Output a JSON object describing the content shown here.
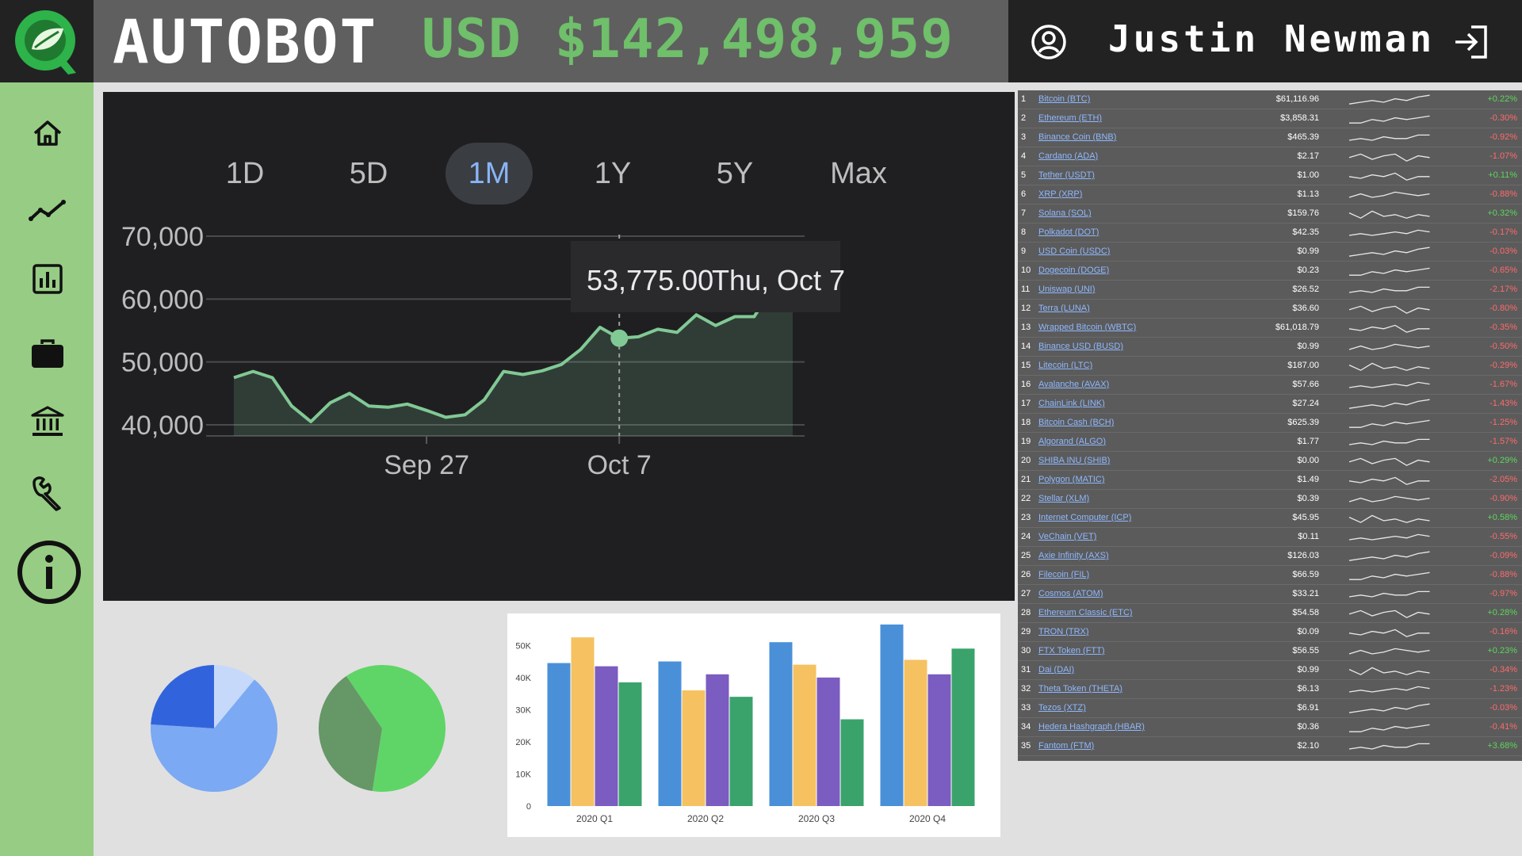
{
  "header": {
    "brand": "AUTOBOT",
    "balance": "USD $142,498,959",
    "user_name": "Justin Newman"
  },
  "sidebar": {
    "items": [
      {
        "name": "home",
        "icon": "home-icon"
      },
      {
        "name": "trends",
        "icon": "line-chart-icon"
      },
      {
        "name": "analytics",
        "icon": "bar-chart-icon"
      },
      {
        "name": "portfolio",
        "icon": "briefcase-icon"
      },
      {
        "name": "bank",
        "icon": "bank-icon"
      },
      {
        "name": "settings",
        "icon": "wrench-icon"
      },
      {
        "name": "info",
        "icon": "info-icon"
      }
    ]
  },
  "range_tabs": [
    "1D",
    "5D",
    "1M",
    "1Y",
    "5Y",
    "Max"
  ],
  "active_range": "1M",
  "tooltip": {
    "value": "53,775.00",
    "date": "Thu, Oct 7"
  },
  "colors": {
    "green": "#6fbf6b",
    "line": "#81c995",
    "accent_blue": "#8ab4f8"
  },
  "crypto": [
    {
      "rank": "1",
      "name": "Bitcoin (BTC)",
      "price": "$61,116.96",
      "change": "+0.22%"
    },
    {
      "rank": "2",
      "name": "Ethereum (ETH)",
      "price": "$3,858.31",
      "change": "-0.30%"
    },
    {
      "rank": "3",
      "name": "Binance Coin (BNB)",
      "price": "$465.39",
      "change": "-0.92%"
    },
    {
      "rank": "4",
      "name": "Cardano (ADA)",
      "price": "$2.17",
      "change": "-1.07%"
    },
    {
      "rank": "5",
      "name": "Tether (USDT)",
      "price": "$1.00",
      "change": "+0.11%"
    },
    {
      "rank": "6",
      "name": "XRP (XRP)",
      "price": "$1.13",
      "change": "-0.88%"
    },
    {
      "rank": "7",
      "name": "Solana (SOL)",
      "price": "$159.76",
      "change": "+0.32%"
    },
    {
      "rank": "8",
      "name": "Polkadot (DOT)",
      "price": "$42.35",
      "change": "-0.17%"
    },
    {
      "rank": "9",
      "name": "USD Coin (USDC)",
      "price": "$0.99",
      "change": "-0.03%"
    },
    {
      "rank": "10",
      "name": "Dogecoin (DOGE)",
      "price": "$0.23",
      "change": "-0.65%"
    },
    {
      "rank": "11",
      "name": "Uniswap (UNI)",
      "price": "$26.52",
      "change": "-2.17%"
    },
    {
      "rank": "12",
      "name": "Terra (LUNA)",
      "price": "$36.60",
      "change": "-0.80%"
    },
    {
      "rank": "13",
      "name": "Wrapped Bitcoin (WBTC)",
      "price": "$61,018.79",
      "change": "-0.35%"
    },
    {
      "rank": "14",
      "name": "Binance USD (BUSD)",
      "price": "$0.99",
      "change": "-0.50%"
    },
    {
      "rank": "15",
      "name": "Litecoin (LTC)",
      "price": "$187.00",
      "change": "-0.29%"
    },
    {
      "rank": "16",
      "name": "Avalanche (AVAX)",
      "price": "$57.66",
      "change": "-1.67%"
    },
    {
      "rank": "17",
      "name": "ChainLink (LINK)",
      "price": "$27.24",
      "change": "-1.43%"
    },
    {
      "rank": "18",
      "name": "Bitcoin Cash (BCH)",
      "price": "$625.39",
      "change": "-1.25%"
    },
    {
      "rank": "19",
      "name": "Algorand (ALGO)",
      "price": "$1.77",
      "change": "-1.57%"
    },
    {
      "rank": "20",
      "name": "SHIBA INU (SHIB)",
      "price": "$0.00",
      "change": "+0.29%"
    },
    {
      "rank": "21",
      "name": "Polygon (MATIC)",
      "price": "$1.49",
      "change": "-2.05%"
    },
    {
      "rank": "22",
      "name": "Stellar (XLM)",
      "price": "$0.39",
      "change": "-0.90%"
    },
    {
      "rank": "23",
      "name": "Internet Computer (ICP)",
      "price": "$45.95",
      "change": "+0.58%"
    },
    {
      "rank": "24",
      "name": "VeChain (VET)",
      "price": "$0.11",
      "change": "-0.55%"
    },
    {
      "rank": "25",
      "name": "Axie Infinity (AXS)",
      "price": "$126.03",
      "change": "-0.09%"
    },
    {
      "rank": "26",
      "name": "Filecoin (FIL)",
      "price": "$66.59",
      "change": "-0.88%"
    },
    {
      "rank": "27",
      "name": "Cosmos (ATOM)",
      "price": "$33.21",
      "change": "-0.97%"
    },
    {
      "rank": "28",
      "name": "Ethereum Classic (ETC)",
      "price": "$54.58",
      "change": "+0.28%"
    },
    {
      "rank": "29",
      "name": "TRON (TRX)",
      "price": "$0.09",
      "change": "-0.16%"
    },
    {
      "rank": "30",
      "name": "FTX Token (FTT)",
      "price": "$56.55",
      "change": "+0.23%"
    },
    {
      "rank": "31",
      "name": "Dai (DAI)",
      "price": "$0.99",
      "change": "-0.34%"
    },
    {
      "rank": "32",
      "name": "Theta Token (THETA)",
      "price": "$6.13",
      "change": "-1.23%"
    },
    {
      "rank": "33",
      "name": "Tezos (XTZ)",
      "price": "$6.91",
      "change": "-0.03%"
    },
    {
      "rank": "34",
      "name": "Hedera Hashgraph (HBAR)",
      "price": "$0.36",
      "change": "-0.41%"
    },
    {
      "rank": "35",
      "name": "Fantom (FTM)",
      "price": "$2.10",
      "change": "+3.68%"
    }
  ],
  "chart_data": [
    {
      "type": "area",
      "y_ticks": [
        "70,000",
        "60,000",
        "50,000",
        "40,000"
      ],
      "x_ticks": [
        "Sep 27",
        "Oct 7"
      ],
      "ylim": [
        40000,
        70000
      ],
      "values": [
        47500,
        48500,
        47500,
        43000,
        40500,
        43500,
        45000,
        43000,
        42800,
        43300,
        42300,
        41200,
        41600,
        44000,
        48500,
        48000,
        48600,
        49600,
        52000,
        55500,
        53775,
        54000,
        55200,
        54700,
        57500,
        55800,
        57200,
        57200,
        62000,
        61200
      ],
      "highlight_index": 20,
      "grid": true
    },
    {
      "type": "pie",
      "values": [
        0.11,
        0.65,
        0.24
      ],
      "colors": [
        "#c6d9fb",
        "#7ba9f3",
        "#3164dc"
      ]
    },
    {
      "type": "pie",
      "values": [
        0.62,
        0.38
      ],
      "colors": [
        "#5fd567",
        "#669766"
      ]
    },
    {
      "type": "bar",
      "categories": [
        "2020 Q1",
        "2020 Q2",
        "2020 Q3",
        "2020 Q4"
      ],
      "y_ticks": [
        "50K",
        "40K",
        "30K",
        "20K",
        "10K",
        "0"
      ],
      "ylim": [
        0,
        55000
      ],
      "series": [
        {
          "values": [
            44500,
            45000,
            51000,
            56500
          ],
          "color": "#4a90d9"
        },
        {
          "values": [
            52500,
            36000,
            44000,
            45500
          ],
          "color": "#f5c161"
        },
        {
          "values": [
            43500,
            41000,
            40000,
            41000
          ],
          "color": "#7b5cc0"
        },
        {
          "values": [
            38500,
            34000,
            27000,
            49000
          ],
          "color": "#3aa36b"
        }
      ]
    }
  ]
}
